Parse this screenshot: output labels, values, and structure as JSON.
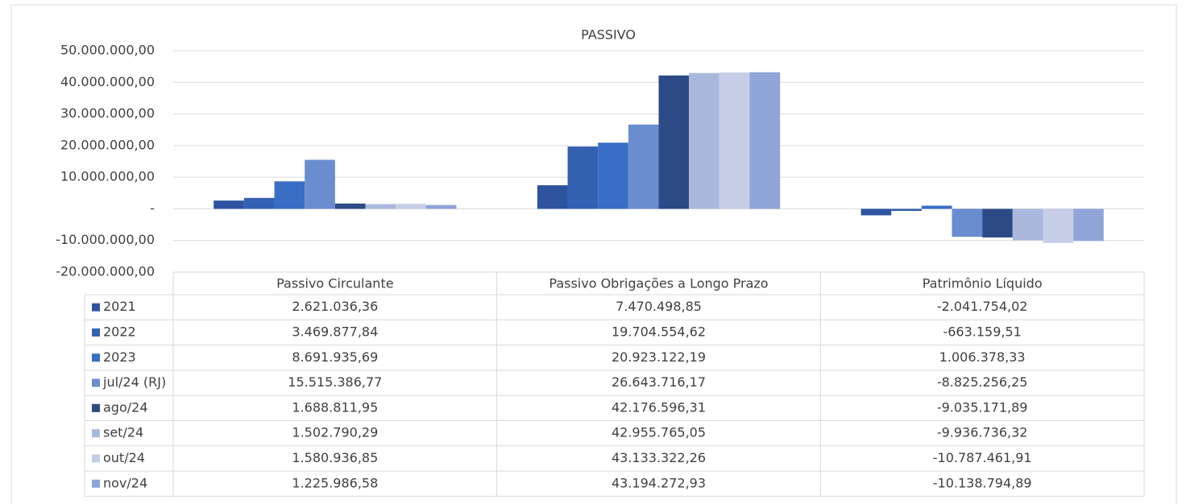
{
  "chart_data": {
    "type": "bar",
    "title": "PASSIVO",
    "categories": [
      "Passivo Circulante",
      "Passivo Obrigações a Longo Prazo",
      "Patrimônio Líquido"
    ],
    "ylim": [
      -20000000,
      50000000
    ],
    "yticks": [
      {
        "value": -20000000,
        "label": "-20.000.000,00"
      },
      {
        "value": -10000000,
        "label": "-10.000.000,00"
      },
      {
        "value": 0,
        "label": "-"
      },
      {
        "value": 10000000,
        "label": "10.000.000,00"
      },
      {
        "value": 20000000,
        "label": "20.000.000,00"
      },
      {
        "value": 30000000,
        "label": "30.000.000,00"
      },
      {
        "value": 40000000,
        "label": "40.000.000,00"
      },
      {
        "value": 50000000,
        "label": "50.000.000,00"
      }
    ],
    "grid": true,
    "series": [
      {
        "name": "2021",
        "color": "#2e54a0",
        "values": [
          2621036.36,
          7470498.85,
          -2041754.02
        ],
        "value_labels": [
          "2.621.036,36",
          "7.470.498,85",
          "-2.041.754,02"
        ]
      },
      {
        "name": "2022",
        "color": "#3461b2",
        "values": [
          3469877.84,
          19704554.62,
          -663159.51
        ],
        "value_labels": [
          "3.469.877,84",
          "19.704.554,62",
          "-663.159,51"
        ]
      },
      {
        "name": "2023",
        "color": "#3a6dc4",
        "values": [
          8691935.69,
          20923122.19,
          1006378.33
        ],
        "value_labels": [
          "8.691.935,69",
          "20.923.122,19",
          "1.006.378,33"
        ]
      },
      {
        "name": "jul/24 (RJ)",
        "color": "#6a8dd0",
        "values": [
          15515386.77,
          26643716.17,
          -8825256.25
        ],
        "value_labels": [
          "15.515.386,77",
          "26.643.716,17",
          "-8.825.256,25"
        ]
      },
      {
        "name": "ago/24",
        "color": "#2c4a86",
        "values": [
          1688811.95,
          42176596.31,
          -9035171.89
        ],
        "value_labels": [
          "1.688.811,95",
          "42.176.596,31",
          "-9.035.171,89"
        ]
      },
      {
        "name": "set/24",
        "color": "#abb8de",
        "values": [
          1502790.29,
          42955765.05,
          -9936736.32
        ],
        "value_labels": [
          "1.502.790,29",
          "42.955.765,05",
          "-9.936.736,32"
        ]
      },
      {
        "name": "out/24",
        "color": "#c6cee7",
        "values": [
          1580936.85,
          43133322.26,
          -10787461.91
        ],
        "value_labels": [
          "1.580.936,85",
          "43.133.322,26",
          "-10.787.461,91"
        ]
      },
      {
        "name": "nov/24",
        "color": "#8fa4d7",
        "values": [
          1225986.58,
          43194272.93,
          -10138794.89
        ],
        "value_labels": [
          "1.225.986,58",
          "43.194.272,93",
          "-10.138.794,89"
        ]
      }
    ]
  }
}
